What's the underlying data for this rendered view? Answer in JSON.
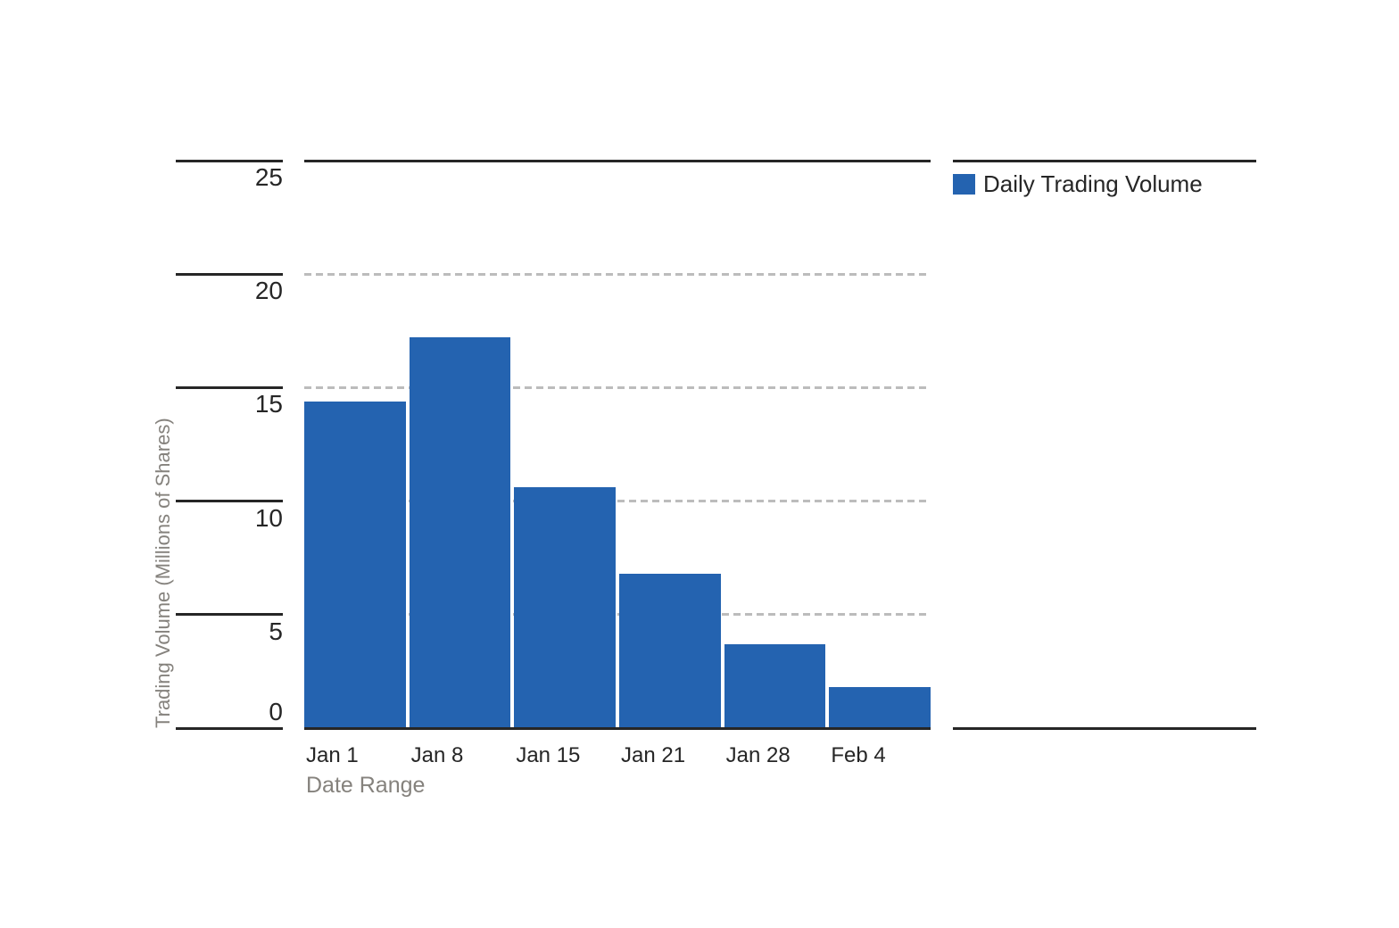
{
  "chart_data": {
    "type": "bar",
    "title": "",
    "categories": [
      "Jan 1",
      "Jan 8",
      "Jan 15",
      "Jan 21",
      "Jan 28",
      "Feb 4"
    ],
    "series": [
      {
        "name": "Daily Trading Volume",
        "color": "#2463b0",
        "values": [
          14.4,
          17.2,
          10.6,
          6.8,
          3.7,
          1.8
        ]
      }
    ],
    "xlabel": "Date Range",
    "ylabel": "Trading Volume (Millions of Shares)",
    "ylim": [
      0,
      25
    ],
    "yticks": [
      0,
      5,
      10,
      15,
      20,
      25
    ],
    "grid": {
      "horizontal": true,
      "style": "dashed",
      "levels": [
        5,
        10,
        15,
        20
      ],
      "color": "#bcbcbc"
    },
    "legend_position": "right"
  },
  "legend": {
    "items": [
      {
        "label": "Daily Trading Volume",
        "color": "#2463b0"
      }
    ]
  },
  "colors": {
    "bar": "#2463b0",
    "axis_line": "#262626",
    "tick_label": "#262626",
    "gridline": "#bcbcbc",
    "muted_label": "#85827d",
    "background": "#ffffff"
  }
}
